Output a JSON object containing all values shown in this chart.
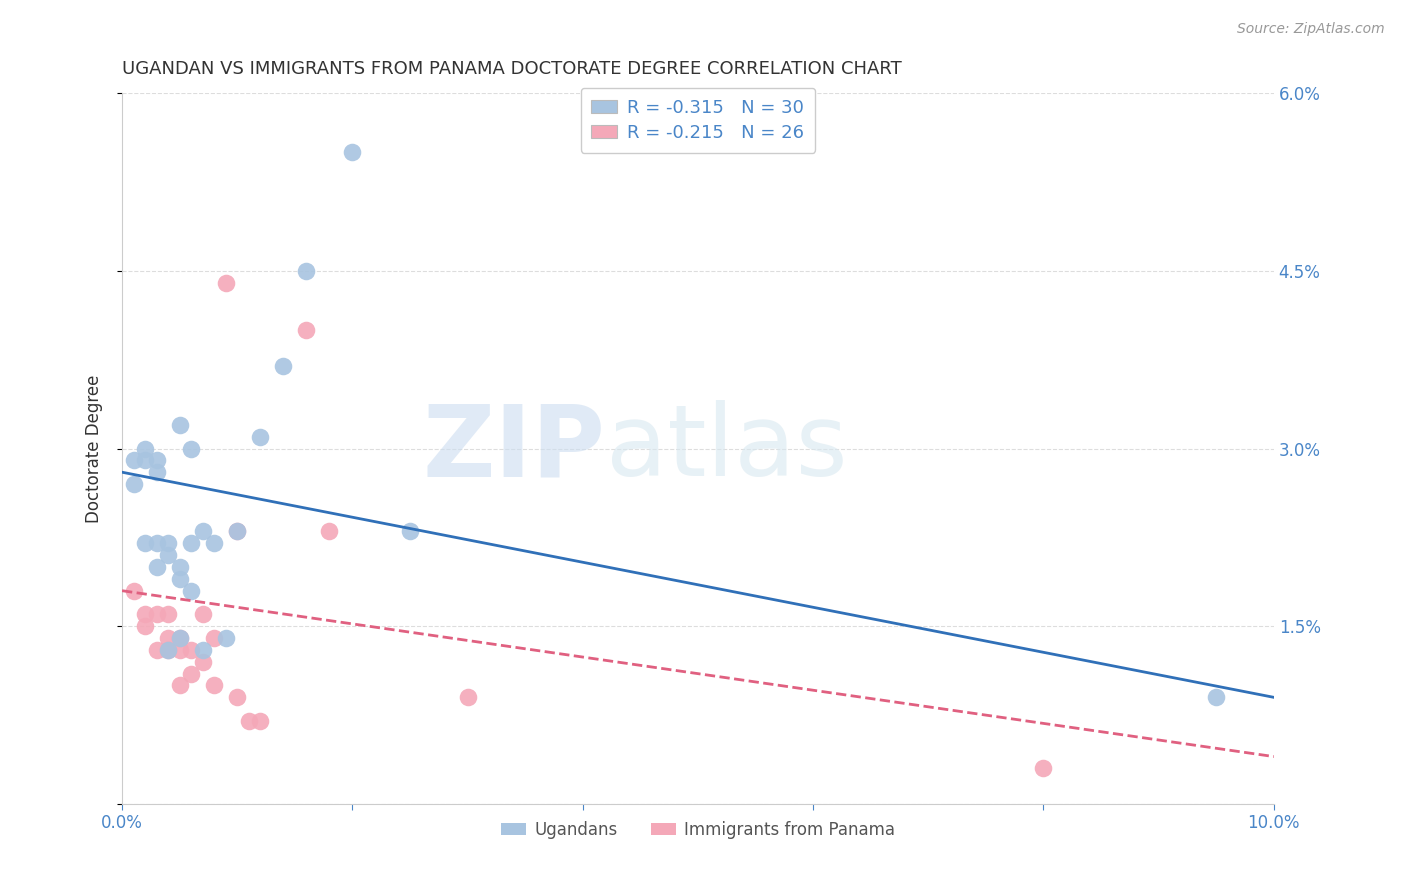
{
  "title": "UGANDAN VS IMMIGRANTS FROM PANAMA DOCTORATE DEGREE CORRELATION CHART",
  "source": "Source: ZipAtlas.com",
  "xlabel": "",
  "ylabel": "Doctorate Degree",
  "xlim": [
    0.0,
    0.1
  ],
  "ylim": [
    0.0,
    0.06
  ],
  "xticks": [
    0.0,
    0.02,
    0.04,
    0.06,
    0.08,
    0.1
  ],
  "xticklabels": [
    "0.0%",
    "",
    "",
    "",
    "",
    "10.0%"
  ],
  "yticks": [
    0.0,
    0.015,
    0.03,
    0.045,
    0.06
  ],
  "yticklabels": [
    "",
    "1.5%",
    "3.0%",
    "4.5%",
    "6.0%"
  ],
  "ugandan_color": "#a8c4e0",
  "panama_color": "#f4a8b8",
  "line_ugandan_color": "#3070b8",
  "line_panama_color": "#e06080",
  "watermark_zip": "ZIP",
  "watermark_atlas": "atlas",
  "legend_r_ugandan": "R = -0.315",
  "legend_n_ugandan": "N = 30",
  "legend_r_panama": "R = -0.215",
  "legend_n_panama": "N = 26",
  "ugandan_x": [
    0.001,
    0.001,
    0.002,
    0.002,
    0.002,
    0.003,
    0.003,
    0.003,
    0.003,
    0.004,
    0.004,
    0.004,
    0.005,
    0.005,
    0.005,
    0.005,
    0.006,
    0.006,
    0.006,
    0.007,
    0.007,
    0.008,
    0.009,
    0.01,
    0.012,
    0.014,
    0.016,
    0.02,
    0.025,
    0.095
  ],
  "ugandan_y": [
    0.029,
    0.027,
    0.03,
    0.029,
    0.022,
    0.029,
    0.028,
    0.022,
    0.02,
    0.022,
    0.021,
    0.013,
    0.032,
    0.019,
    0.02,
    0.014,
    0.03,
    0.022,
    0.018,
    0.023,
    0.013,
    0.022,
    0.014,
    0.023,
    0.031,
    0.037,
    0.045,
    0.055,
    0.023,
    0.009
  ],
  "panama_x": [
    0.001,
    0.002,
    0.002,
    0.003,
    0.003,
    0.004,
    0.004,
    0.004,
    0.005,
    0.005,
    0.005,
    0.006,
    0.006,
    0.007,
    0.007,
    0.008,
    0.008,
    0.009,
    0.01,
    0.01,
    0.011,
    0.012,
    0.016,
    0.018,
    0.03,
    0.08
  ],
  "panama_y": [
    0.018,
    0.016,
    0.015,
    0.013,
    0.016,
    0.016,
    0.014,
    0.013,
    0.014,
    0.013,
    0.01,
    0.013,
    0.011,
    0.016,
    0.012,
    0.01,
    0.014,
    0.044,
    0.023,
    0.009,
    0.007,
    0.007,
    0.04,
    0.023,
    0.009,
    0.003
  ],
  "line_ugandan_x0": 0.0,
  "line_ugandan_y0": 0.028,
  "line_ugandan_x1": 0.1,
  "line_ugandan_y1": 0.009,
  "line_panama_x0": 0.0,
  "line_panama_y0": 0.018,
  "line_panama_x1": 0.1,
  "line_panama_y1": 0.004,
  "bg_color": "#ffffff",
  "grid_color": "#dddddd",
  "axis_color": "#cccccc",
  "title_color": "#333333",
  "tick_color": "#4a86c8",
  "right_axis_color": "#4a86c8"
}
